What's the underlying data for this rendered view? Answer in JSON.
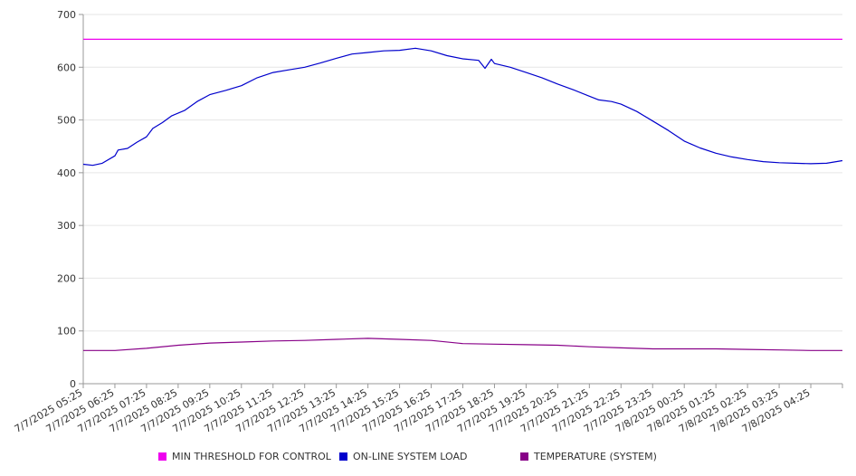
{
  "chart_data": {
    "type": "line",
    "ylim": [
      0,
      700
    ],
    "yticks": [
      "0",
      "100",
      "200",
      "300",
      "400",
      "500",
      "600",
      "700"
    ],
    "grid": true,
    "legend_position": "bottom",
    "x_labels": [
      "7/7/2025 05:25",
      "7/7/2025 06:25",
      "7/7/2025 07:25",
      "7/7/2025 08:25",
      "7/7/2025 09:25",
      "7/7/2025 10:25",
      "7/7/2025 11:25",
      "7/7/2025 12:25",
      "7/7/2025 13:25",
      "7/7/2025 14:25",
      "7/7/2025 15:25",
      "7/7/2025 16:25",
      "7/7/2025 17:25",
      "7/7/2025 18:25",
      "7/7/2025 19:25",
      "7/7/2025 20:25",
      "7/7/2025 21:25",
      "7/7/2025 22:25",
      "7/7/2025 23:25",
      "7/8/2025 00:25",
      "7/8/2025 01:25",
      "7/8/2025 02:25",
      "7/8/2025 03:25",
      "7/8/2025 04:25"
    ],
    "series": [
      {
        "name": "MIN THRESHOLD FOR CONTROL",
        "color": "#ee00ee",
        "points": [
          [
            0,
            653
          ],
          [
            24,
            653
          ]
        ]
      },
      {
        "name": "ON-LINE SYSTEM LOAD",
        "color": "#0000cc",
        "points": [
          [
            0,
            416
          ],
          [
            0.3,
            414
          ],
          [
            0.6,
            418
          ],
          [
            1.0,
            432
          ],
          [
            1.1,
            443
          ],
          [
            1.4,
            446
          ],
          [
            1.7,
            458
          ],
          [
            2.0,
            468
          ],
          [
            2.2,
            484
          ],
          [
            2.5,
            495
          ],
          [
            2.8,
            508
          ],
          [
            3.2,
            518
          ],
          [
            3.6,
            535
          ],
          [
            4.0,
            548
          ],
          [
            4.5,
            556
          ],
          [
            5.0,
            565
          ],
          [
            5.5,
            580
          ],
          [
            6.0,
            590
          ],
          [
            6.5,
            595
          ],
          [
            7.0,
            600
          ],
          [
            7.5,
            608
          ],
          [
            8.0,
            617
          ],
          [
            8.5,
            625
          ],
          [
            9.0,
            628
          ],
          [
            9.5,
            631
          ],
          [
            10.0,
            632
          ],
          [
            10.5,
            636
          ],
          [
            11.0,
            631
          ],
          [
            11.5,
            622
          ],
          [
            12.0,
            616
          ],
          [
            12.5,
            613
          ],
          [
            12.7,
            598
          ],
          [
            12.9,
            615
          ],
          [
            13.0,
            607
          ],
          [
            13.5,
            600
          ],
          [
            14.0,
            590
          ],
          [
            14.5,
            580
          ],
          [
            15.0,
            568
          ],
          [
            15.5,
            557
          ],
          [
            16.0,
            545
          ],
          [
            16.3,
            538
          ],
          [
            16.7,
            535
          ],
          [
            17.0,
            530
          ],
          [
            17.5,
            516
          ],
          [
            18.0,
            498
          ],
          [
            18.5,
            480
          ],
          [
            19.0,
            460
          ],
          [
            19.5,
            447
          ],
          [
            20.0,
            437
          ],
          [
            20.5,
            430
          ],
          [
            21.0,
            425
          ],
          [
            21.5,
            421
          ],
          [
            22.0,
            419
          ],
          [
            22.5,
            418
          ],
          [
            23.0,
            417
          ],
          [
            23.5,
            418
          ],
          [
            24.0,
            423
          ]
        ]
      },
      {
        "name": "TEMPERATURE (SYSTEM)",
        "color": "#880088",
        "points": [
          [
            0,
            63
          ],
          [
            1,
            63
          ],
          [
            2,
            67
          ],
          [
            3,
            73
          ],
          [
            4,
            77
          ],
          [
            5,
            79
          ],
          [
            6,
            81
          ],
          [
            7,
            82
          ],
          [
            8,
            84
          ],
          [
            9,
            86
          ],
          [
            10,
            84
          ],
          [
            11,
            82
          ],
          [
            12,
            76
          ],
          [
            13,
            75
          ],
          [
            14,
            74
          ],
          [
            15,
            73
          ],
          [
            16,
            70
          ],
          [
            17,
            68
          ],
          [
            18,
            66
          ],
          [
            19,
            66
          ],
          [
            20,
            66
          ],
          [
            21,
            65
          ],
          [
            22,
            64
          ],
          [
            23,
            63
          ],
          [
            24,
            63
          ]
        ]
      }
    ]
  }
}
